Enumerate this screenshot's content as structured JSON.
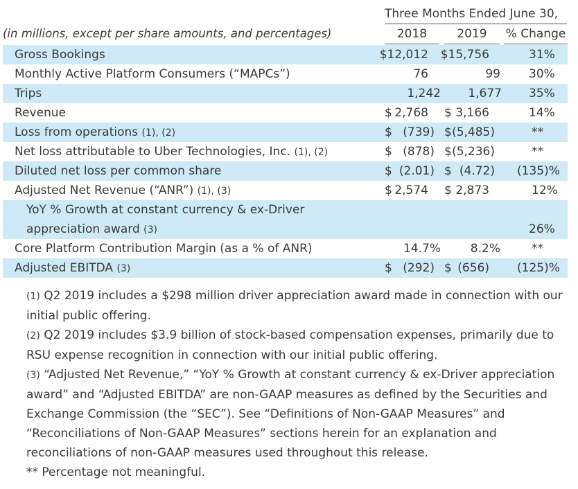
{
  "header": {
    "period": "Three Months Ended June 30,",
    "units_note": "(in millions, except per share amounts, and percentages)",
    "col_2018": "2018",
    "col_2019": "2019",
    "col_change": "% Change"
  },
  "rows": [
    {
      "label": "Gross Bookings",
      "fn": "",
      "s18": "",
      "v18": "$12,012",
      "s19": "",
      "v19": "$15,756",
      "chg": "31%"
    },
    {
      "label": "Monthly Active Platform Consumers (“MAPCs”)",
      "fn": "",
      "s18": "",
      "v18": "76",
      "s19": "",
      "v19": "99",
      "chg": "30%"
    },
    {
      "label": "Trips",
      "fn": "",
      "s18": "",
      "v18": "1,242",
      "s19": "",
      "v19": "1,677",
      "chg": "35%"
    },
    {
      "label": "Revenue",
      "fn": "",
      "s18": "$",
      "v18": "2,768",
      "s19": "$",
      "v19": "3,166",
      "chg": "14%"
    },
    {
      "label": "Loss from operations",
      "fn": "(1), (2)",
      "s18": "$",
      "v18": "(739)",
      "s19": "$",
      "v19": "(5,485)",
      "chg": "**"
    },
    {
      "label": "Net loss attributable to Uber Technologies, Inc.",
      "fn": "(1), (2)",
      "s18": "$",
      "v18": "(878)",
      "s19": "$",
      "v19": "(5,236)",
      "chg": "**"
    },
    {
      "label": "Diluted net loss per common share",
      "fn": "",
      "s18": "$",
      "v18": "(2.01)",
      "s19": "$",
      "v19": "(4.72)",
      "chg": "(135)%"
    },
    {
      "label": "Adjusted Net Revenue (“ANR”)",
      "fn": "(1), (3)",
      "s18": "$",
      "v18": "2,574",
      "s19": "$",
      "v19": "2,873",
      "chg": "12%"
    },
    {
      "label_line1": "YoY % Growth at constant currency & ex-Driver",
      "label_line2": "appreciation award",
      "fn": "(3)",
      "chg": "26%"
    },
    {
      "label": "Core Platform Contribution Margin (as a % of ANR)",
      "fn": "",
      "v18": "14.7%",
      "v19": "8.2%",
      "chg": "**"
    },
    {
      "label": "Adjusted EBITDA",
      "fn": "(3)",
      "s18": "$",
      "v18": "(292)",
      "s19": "$",
      "v19": "(656)",
      "chg": "(125)%"
    }
  ],
  "footnotes": [
    {
      "mark": "(1)",
      "text": "Q2 2019 includes a $298 million driver appreciation award made in connection with our initial public offering."
    },
    {
      "mark": "(2)",
      "text": "Q2 2019 includes $3.9 billion of stock-based compensation expenses, primarily due to RSU expense recognition in connection with our initial public offering."
    },
    {
      "mark": "(3)",
      "text": "“Adjusted Net Revenue,” “YoY % Growth at constant currency & ex-Driver appreciation award” and “Adjusted EBITDA” are non-GAAP measures as defined by the Securities and Exchange Commission (the “SEC”). See “Definitions of Non-GAAP Measures” and “Reconciliations of Non-GAAP Measures” sections herein for an explanation and reconciliations of non-GAAP measures used throughout this release."
    },
    {
      "mark": "**",
      "text": "Percentage not meaningful."
    }
  ],
  "colors": {
    "row_shade": "#cdeaf6",
    "text": "#3a3a3a"
  }
}
